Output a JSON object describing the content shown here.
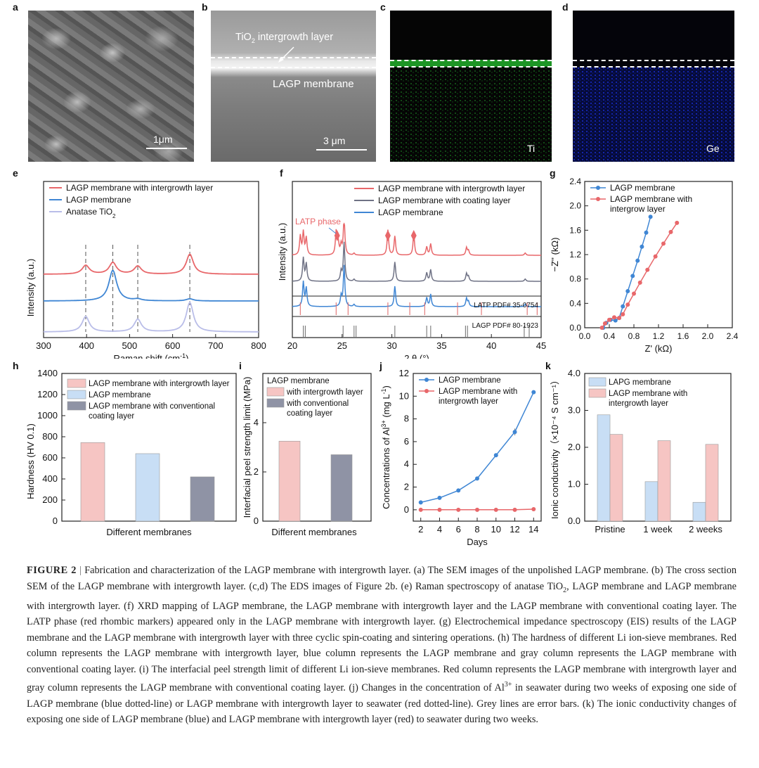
{
  "panels": {
    "a": {
      "letter": "a",
      "scale_label": "1μm"
    },
    "b": {
      "letter": "b",
      "layer_label_pre": "TiO",
      "layer_label_sub": "2",
      "layer_label_post": " intergrowth layer",
      "membrane_label": "LAGP membrane",
      "scale_label": "3 μm"
    },
    "c": {
      "letter": "c",
      "element": "Ti",
      "color": "#1fae2a"
    },
    "d": {
      "letter": "d",
      "element": "Ge",
      "color": "#1b2ecf"
    }
  },
  "chart_data": [
    {
      "id": "e",
      "type": "line",
      "xlabel_pre": "Raman shift (cm",
      "xlabel_sup": "-1",
      "xlabel_post": ")",
      "ylabel": "Intensity (a.u.)",
      "xlim": [
        300,
        800
      ],
      "xticks": [
        300,
        400,
        500,
        600,
        700,
        800
      ],
      "peak_lines": [
        398,
        461,
        519,
        640
      ],
      "series": [
        {
          "name": "LAGP membrane with intergrowth layer",
          "color": "#e8676a",
          "peaks": [
            [
              398,
              0.42
            ],
            [
              461,
              0.55
            ],
            [
              519,
              0.38
            ],
            [
              640,
              0.95
            ]
          ]
        },
        {
          "name": "LAGP membrane",
          "color": "#3f86d4",
          "peaks": [
            [
              461,
              1.15
            ],
            [
              519,
              0.06
            ],
            [
              640,
              0.08
            ]
          ]
        },
        {
          "name": "Anatase TiO",
          "name_sub": "2",
          "color": "#b9bde8",
          "peaks": [
            [
              398,
              0.55
            ],
            [
              519,
              0.45
            ],
            [
              640,
              1.05
            ]
          ]
        }
      ]
    },
    {
      "id": "f",
      "type": "line",
      "xlabel": "2 θ (°)",
      "ylabel": "Intensity (a.u.)",
      "xlim": [
        20,
        45
      ],
      "xticks": [
        20,
        25,
        30,
        35,
        40,
        45
      ],
      "annotation": "LATP phase",
      "series": [
        {
          "name": "LAGP membrane with intergrowth layer",
          "color": "#e8676a"
        },
        {
          "name": "LAGP membrane with coating layer",
          "color": "#6f7285"
        },
        {
          "name": "LAGP membrane",
          "color": "#3f86d4"
        }
      ],
      "diamond_markers": [
        24.5,
        29.6,
        32.2
      ],
      "reference": [
        {
          "name": "LATP PDF# 35-0754",
          "color": "#e07070",
          "x": [
            20.8,
            24.4,
            25.6,
            29.6,
            31.8,
            33.3,
            36.6,
            39.0,
            43.6,
            44.6
          ]
        },
        {
          "name": "LAGP PDF# 80-1923",
          "color": "#777",
          "x": [
            21.1,
            21.3,
            25.1,
            26.2,
            26.4,
            30.3,
            33.5,
            33.9,
            37.4,
            37.6,
            43.3,
            43.8
          ]
        }
      ]
    },
    {
      "id": "g",
      "type": "scatter",
      "xlabel": "Z' (kΩ)",
      "ylabel": "−Z'' (kΩ)",
      "xlim": [
        0.0,
        2.4
      ],
      "ylim": [
        0.0,
        2.4
      ],
      "xticks": [
        "0.0",
        "0.4",
        "0.8",
        "1.2",
        "1.6",
        "2.0",
        "2.4"
      ],
      "yticks": [
        "0.0",
        "0.4",
        "0.8",
        "1.2",
        "1.6",
        "2.0",
        "2.4"
      ],
      "series": [
        {
          "name": "LAGP membrane",
          "color": "#3f86d4",
          "x": [
            0.3,
            0.35,
            0.42,
            0.5,
            0.56,
            0.62,
            0.7,
            0.78,
            0.86,
            0.93,
            1.0,
            1.07
          ],
          "y": [
            0.0,
            0.08,
            0.13,
            0.12,
            0.16,
            0.35,
            0.6,
            0.85,
            1.1,
            1.33,
            1.56,
            1.82
          ]
        },
        {
          "name": "LAGP membrane with\nintergrow layer",
          "color": "#e8676a",
          "x": [
            0.28,
            0.33,
            0.4,
            0.48,
            0.56,
            0.62,
            0.7,
            0.8,
            0.9,
            1.02,
            1.15,
            1.28,
            1.4,
            1.5
          ],
          "y": [
            0.0,
            0.07,
            0.13,
            0.17,
            0.16,
            0.22,
            0.38,
            0.56,
            0.74,
            0.95,
            1.17,
            1.38,
            1.57,
            1.72
          ]
        }
      ]
    },
    {
      "id": "h",
      "type": "bar",
      "xlabel": "Different membranes",
      "ylabel": "Hardness (HV 0.1)",
      "ylim": [
        0,
        1400
      ],
      "yticks": [
        0,
        200,
        400,
        600,
        800,
        1000,
        1200,
        1400
      ],
      "series": [
        {
          "name": "LAGP membrane with intergrowth layer",
          "value": 745,
          "color": "#f6c5c3"
        },
        {
          "name": "LAGP membrane",
          "value": 640,
          "color": "#c8def5"
        },
        {
          "name": "LAGP membrane with conventional\ncoating layer",
          "value": 420,
          "color": "#8f93a5"
        }
      ]
    },
    {
      "id": "i",
      "type": "bar",
      "xlabel": "Different membranes",
      "ylabel": "Interfacial peel strength limit (MPa)",
      "ylim": [
        0,
        6
      ],
      "yticks": [
        0,
        2,
        4
      ],
      "legend_title": "LAGP membrane",
      "series": [
        {
          "name": "with intergrowth layer",
          "value": 3.25,
          "color": "#f6c5c3"
        },
        {
          "name": "with conventional\ncoating layer",
          "value": 2.7,
          "color": "#8f93a5"
        }
      ]
    },
    {
      "id": "j",
      "type": "line",
      "xlabel": "Days",
      "ylabel_pre": "Concentrations of Al",
      "ylabel_sup": "3+",
      "ylabel_post": " (mg L",
      "ylabel_sup2": "-1",
      "ylabel_post2": ")",
      "xlim": [
        1.2,
        14.8
      ],
      "ylim": [
        -1,
        12
      ],
      "xticks": [
        2,
        4,
        6,
        8,
        10,
        12,
        14
      ],
      "yticks": [
        0,
        2,
        4,
        6,
        8,
        10,
        12
      ],
      "series": [
        {
          "name": "LAGP membrane",
          "color": "#3f86d4",
          "x": [
            2,
            4,
            6,
            8,
            10,
            12,
            14
          ],
          "y": [
            0.65,
            1.05,
            1.7,
            2.75,
            4.8,
            6.85,
            10.35
          ]
        },
        {
          "name": "LAGP membrane with\nintergrowth layer",
          "color": "#e8676a",
          "x": [
            2,
            4,
            6,
            8,
            10,
            12,
            14
          ],
          "y": [
            0.0,
            0.0,
            0.0,
            0.0,
            0.0,
            0.0,
            0.05
          ]
        }
      ]
    },
    {
      "id": "k",
      "type": "bar",
      "xlabel": "",
      "ylabel": "Ionic conductivity（×10⁻⁴ S cm⁻¹）",
      "ylim": [
        0,
        4.0
      ],
      "yticks": [
        "0.0",
        "1.0",
        "2.0",
        "3.0",
        "4.0"
      ],
      "categories": [
        "Pristine",
        "1 week",
        "2 weeks"
      ],
      "series": [
        {
          "name": "LAPG membrane",
          "color": "#c8def5",
          "values": [
            2.88,
            1.07,
            0.51
          ]
        },
        {
          "name": "LAGP membrane with\nintergrowth layer",
          "color": "#f6c5c3",
          "values": [
            2.35,
            2.18,
            2.08
          ]
        }
      ]
    }
  ],
  "caption": {
    "label": "FIGURE 2",
    "sep": "|",
    "s1": "Fabrication and characterization of the LAGP membrane with intergrowth layer. (a) The SEM images of the unpolished LAGP membrane. (b) The cross section SEM of the LAGP membrane with intergrowth layer. (c,d) The EDS images of Figure 2b. (e) Raman spectroscopy of anatase TiO",
    "s1_sub": "2",
    "s2": ", LAGP membrane and LAGP membrane with intergrowth layer. (f) XRD mapping of LAGP membrane, the LAGP membrane with intergrowth layer and the LAGP membrane with conventional coating layer. The LATP phase (red rhombic markers) appeared only in the LAGP membrane with intergrowth layer. (g) Electrochemical impedance spectroscopy (EIS) results of the LAGP membrane and the LAGP membrane with intergrowth layer with three cyclic spin-coating and sintering operations. (h) The hardness of different Li ion-sieve membranes. Red column represents the LAGP membrane with intergrowth layer, blue column represents the LAGP membrane and gray column represents the LAGP membrane with conventional coating layer. (i) The interfacial peel strength limit of different Li ion-sieve membranes. Red column represents the LAGP membrane with intergrowth layer and gray column represents the LAGP membrane with conventional coating layer. (j) Changes in the concentration of Al",
    "s2_sup": "3+",
    "s3": " in seawater during two weeks of exposing one side of LAGP membrane (blue dotted-line) or LAGP membrane with intergrowth layer to seawater (red dotted-line). Grey lines are error bars. (k) The ionic conductivity changes of exposing one side of LAGP membrane (blue) and LAGP membrane with intergrowth layer (red) to seawater during two weeks."
  }
}
